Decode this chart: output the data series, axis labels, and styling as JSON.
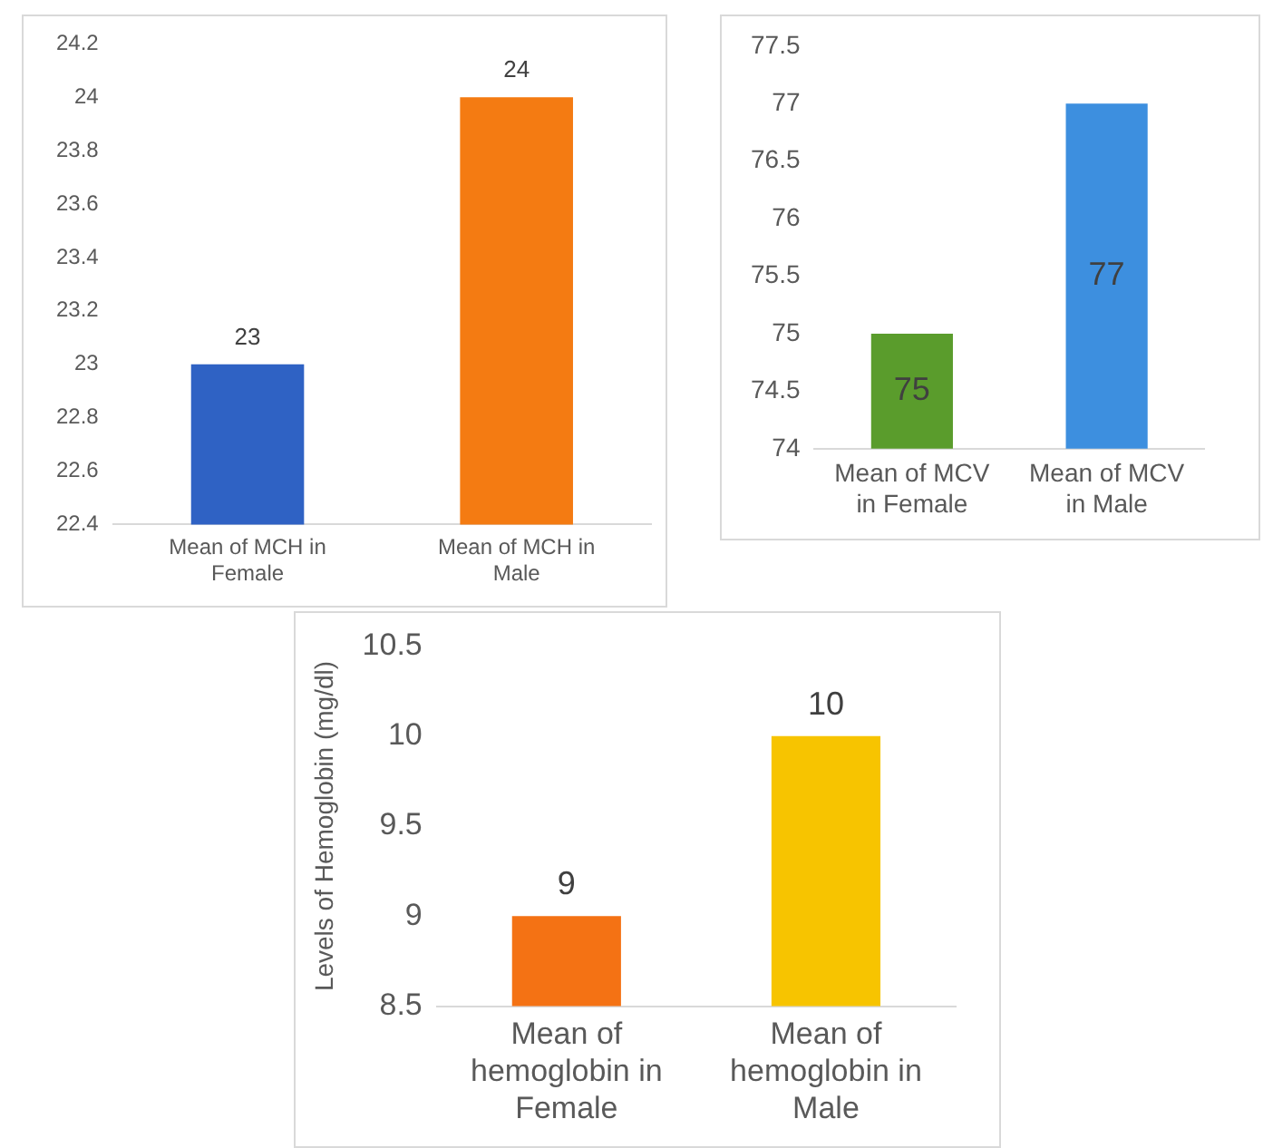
{
  "chart_data": [
    {
      "type": "bar",
      "categories": [
        "Mean of MCH in Female",
        "Mean of MCH in Male"
      ],
      "values": [
        23,
        24
      ],
      "colors": [
        "#2f62c4",
        "#f47b12"
      ],
      "ylim": [
        22.4,
        24.2
      ],
      "yticks": [
        22.4,
        22.6,
        22.8,
        23,
        23.2,
        23.4,
        23.6,
        23.8,
        24,
        24.2
      ],
      "data_labels": true,
      "grid": false,
      "legend": false
    },
    {
      "type": "bar",
      "categories": [
        "Mean of MCV in Female",
        "Mean of MCV in Male"
      ],
      "values": [
        75,
        77
      ],
      "colors": [
        "#5a9c2c",
        "#3d8fdf"
      ],
      "ylim": [
        74,
        77.5
      ],
      "yticks": [
        74,
        74.5,
        75,
        75.5,
        76,
        76.5,
        77,
        77.5
      ],
      "data_labels": true,
      "grid": false,
      "legend": false
    },
    {
      "type": "bar",
      "categories": [
        "Mean of hemoglobin in Female",
        "Mean of hemoglobin in Male"
      ],
      "values": [
        9,
        10
      ],
      "colors": [
        "#f47214",
        "#f7c400"
      ],
      "ylabel": "Levels of Hemoglobin (mg/dl)",
      "ylim": [
        8.5,
        10.5
      ],
      "yticks": [
        8.5,
        9,
        9.5,
        10,
        10.5
      ],
      "data_labels": true,
      "grid": false,
      "legend": false
    }
  ]
}
